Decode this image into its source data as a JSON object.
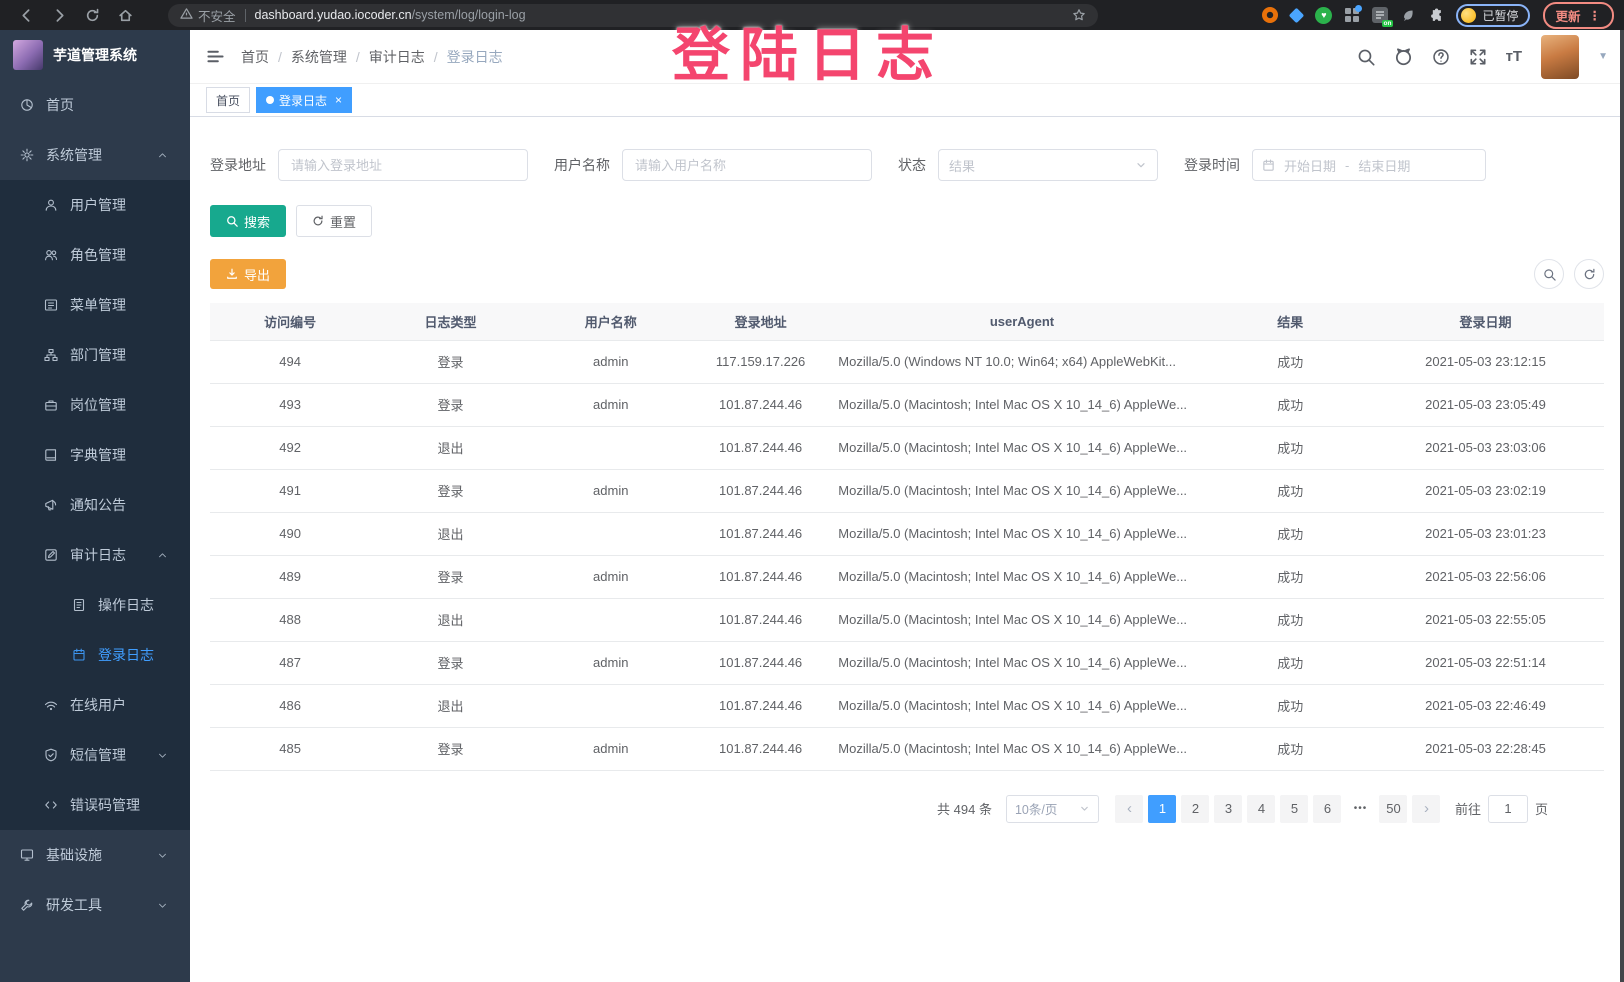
{
  "browser": {
    "security_label": "不安全",
    "url_domain": "dashboard.yudao.iocoder.cn",
    "url_path": "/system/log/login-log",
    "paused_badge": "已暂停",
    "update_button": "更新"
  },
  "overlay_title": "登陆日志",
  "sidebar": {
    "logo_title": "芋道管理系统",
    "menu": [
      {
        "name": "home",
        "label": "首页",
        "icon": "dashboard-icon",
        "level": 1
      },
      {
        "name": "system",
        "label": "系统管理",
        "icon": "gear-icon",
        "level": 1,
        "chevron": "up"
      },
      {
        "name": "user-mgmt",
        "label": "用户管理",
        "icon": "user-icon",
        "level": 2,
        "sub": true
      },
      {
        "name": "role-mgmt",
        "label": "角色管理",
        "icon": "role-icon",
        "level": 2,
        "sub": true
      },
      {
        "name": "menu-mgmt",
        "label": "菜单管理",
        "icon": "menu-icon",
        "level": 2,
        "sub": true
      },
      {
        "name": "dept-mgmt",
        "label": "部门管理",
        "icon": "dept-icon",
        "level": 2,
        "sub": true
      },
      {
        "name": "post-mgmt",
        "label": "岗位管理",
        "icon": "post-icon",
        "level": 2,
        "sub": true
      },
      {
        "name": "dict-mgmt",
        "label": "字典管理",
        "icon": "dict-icon",
        "level": 2,
        "sub": true
      },
      {
        "name": "notice",
        "label": "通知公告",
        "icon": "notice-icon",
        "level": 2,
        "sub": true
      },
      {
        "name": "audit-log",
        "label": "审计日志",
        "icon": "audit-icon",
        "level": 2,
        "sub": true,
        "chevron": "up"
      },
      {
        "name": "operate-log",
        "label": "操作日志",
        "icon": "operate-log-icon",
        "level": 3,
        "sub": true
      },
      {
        "name": "login-log",
        "label": "登录日志",
        "icon": "login-log-icon",
        "level": 3,
        "sub": true,
        "active": true
      },
      {
        "name": "online-user",
        "label": "在线用户",
        "icon": "online-icon",
        "level": 2,
        "sub": true
      },
      {
        "name": "sms-mgmt",
        "label": "短信管理",
        "icon": "sms-icon",
        "level": 2,
        "sub": true,
        "chevron": "down"
      },
      {
        "name": "error-code",
        "label": "错误码管理",
        "icon": "error-code-icon",
        "level": 2,
        "sub": true
      },
      {
        "name": "infra",
        "label": "基础设施",
        "icon": "infra-icon",
        "level": 1,
        "chevron": "down"
      },
      {
        "name": "dev-tools",
        "label": "研发工具",
        "icon": "devtool-icon",
        "level": 1,
        "chevron": "down"
      }
    ]
  },
  "navbar": {
    "breadcrumb": [
      "首页",
      "系统管理",
      "审计日志",
      "登录日志"
    ]
  },
  "tags": [
    {
      "label": "首页",
      "active": false,
      "closable": false
    },
    {
      "label": "登录日志",
      "active": true,
      "closable": true
    }
  ],
  "filters": {
    "address_label": "登录地址",
    "address_placeholder": "请输入登录地址",
    "address_value": "",
    "username_label": "用户名称",
    "username_placeholder": "请输入用户名称",
    "username_value": "",
    "status_label": "状态",
    "status_placeholder": "结果",
    "time_label": "登录时间",
    "time_start_placeholder": "开始日期",
    "time_separator": "-",
    "time_end_placeholder": "结束日期"
  },
  "actions": {
    "search": "搜索",
    "reset": "重置",
    "export": "导出"
  },
  "table": {
    "columns": [
      "访问编号",
      "日志类型",
      "用户名称",
      "登录地址",
      "userAgent",
      "结果",
      "登录日期"
    ],
    "rows": [
      [
        "494",
        "登录",
        "admin",
        "117.159.17.226",
        "Mozilla/5.0 (Windows NT 10.0; Win64; x64) AppleWebKit...",
        "成功",
        "2021-05-03 23:12:15"
      ],
      [
        "493",
        "登录",
        "admin",
        "101.87.244.46",
        "Mozilla/5.0 (Macintosh; Intel Mac OS X 10_14_6) AppleWe...",
        "成功",
        "2021-05-03 23:05:49"
      ],
      [
        "492",
        "退出",
        "",
        "101.87.244.46",
        "Mozilla/5.0 (Macintosh; Intel Mac OS X 10_14_6) AppleWe...",
        "成功",
        "2021-05-03 23:03:06"
      ],
      [
        "491",
        "登录",
        "admin",
        "101.87.244.46",
        "Mozilla/5.0 (Macintosh; Intel Mac OS X 10_14_6) AppleWe...",
        "成功",
        "2021-05-03 23:02:19"
      ],
      [
        "490",
        "退出",
        "",
        "101.87.244.46",
        "Mozilla/5.0 (Macintosh; Intel Mac OS X 10_14_6) AppleWe...",
        "成功",
        "2021-05-03 23:01:23"
      ],
      [
        "489",
        "登录",
        "admin",
        "101.87.244.46",
        "Mozilla/5.0 (Macintosh; Intel Mac OS X 10_14_6) AppleWe...",
        "成功",
        "2021-05-03 22:56:06"
      ],
      [
        "488",
        "退出",
        "",
        "101.87.244.46",
        "Mozilla/5.0 (Macintosh; Intel Mac OS X 10_14_6) AppleWe...",
        "成功",
        "2021-05-03 22:55:05"
      ],
      [
        "487",
        "登录",
        "admin",
        "101.87.244.46",
        "Mozilla/5.0 (Macintosh; Intel Mac OS X 10_14_6) AppleWe...",
        "成功",
        "2021-05-03 22:51:14"
      ],
      [
        "486",
        "退出",
        "",
        "101.87.244.46",
        "Mozilla/5.0 (Macintosh; Intel Mac OS X 10_14_6) AppleWe...",
        "成功",
        "2021-05-03 22:46:49"
      ],
      [
        "485",
        "登录",
        "admin",
        "101.87.244.46",
        "Mozilla/5.0 (Macintosh; Intel Mac OS X 10_14_6) AppleWe...",
        "成功",
        "2021-05-03 22:28:45"
      ]
    ]
  },
  "pagination": {
    "total": "共 494 条",
    "page_size": "10条/页",
    "pages": [
      "1",
      "2",
      "3",
      "4",
      "5",
      "6",
      "•••",
      "50"
    ],
    "active_page": "1",
    "goto_label": "前往",
    "goto_value": "1",
    "page_unit": "页"
  },
  "colors": {
    "primary": "#409eff",
    "search_button": "#17a98e",
    "export_button": "#f2a33c",
    "overlay": "#f4456e",
    "sidebar_bg": "#2d3a4b",
    "submenu_bg": "#1f2d3d"
  }
}
